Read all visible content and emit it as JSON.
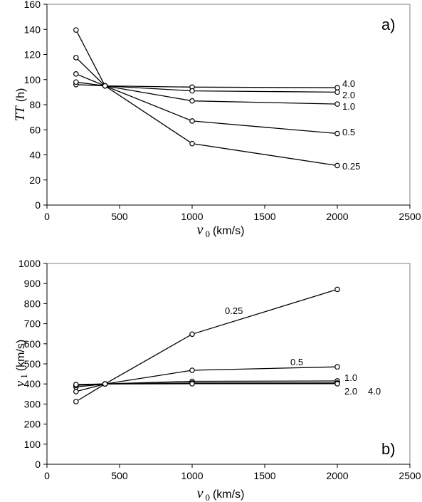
{
  "chart_data": [
    {
      "type": "line",
      "panel_label": "a)",
      "xlabel": {
        "var": "v",
        "sub": "0",
        "unit": "(km/s)"
      },
      "ylabel": {
        "var": "TT",
        "unit": "(h)"
      },
      "xlim": [
        0,
        2500
      ],
      "ylim": [
        0,
        160
      ],
      "xticks": [
        "0",
        "500",
        "1000",
        "1500",
        "2000",
        "2500"
      ],
      "yticks": [
        "0",
        "20",
        "40",
        "60",
        "80",
        "100",
        "120",
        "140",
        "160"
      ],
      "grid": false,
      "x": [
        200,
        400,
        1000,
        2000
      ],
      "series": [
        {
          "name": "4.0",
          "values": [
            96,
            95,
            94,
            93.5
          ]
        },
        {
          "name": "2.0",
          "values": [
            98,
            95,
            91,
            90
          ]
        },
        {
          "name": "1.0",
          "values": [
            104.5,
            95,
            83,
            80.5
          ]
        },
        {
          "name": "0.5",
          "values": [
            117.5,
            95,
            67,
            57
          ]
        },
        {
          "name": "0.25",
          "values": [
            139.5,
            95,
            49,
            31.5
          ]
        }
      ]
    },
    {
      "type": "line",
      "panel_label": "b)",
      "xlabel": {
        "var": "v",
        "sub": "0",
        "unit": "(km/s)"
      },
      "ylabel": {
        "var": "v",
        "sub": "1",
        "unit": "(km/s)"
      },
      "xlim": [
        0,
        2500
      ],
      "ylim": [
        0,
        1000
      ],
      "xticks": [
        "0",
        "500",
        "1000",
        "1500",
        "2000",
        "2500"
      ],
      "yticks": [
        "0",
        "100",
        "200",
        "300",
        "400",
        "500",
        "600",
        "700",
        "800",
        "900",
        "1000"
      ],
      "grid": false,
      "x": [
        200,
        400,
        1000,
        2000
      ],
      "series": [
        {
          "name": "0.25",
          "values": [
            312,
            400,
            648,
            871
          ]
        },
        {
          "name": "0.5",
          "values": [
            362,
            400,
            468,
            485
          ]
        },
        {
          "name": "1.0",
          "values": [
            385,
            400,
            413,
            415
          ]
        },
        {
          "name": "2.0",
          "values": [
            393,
            400,
            405,
            405
          ]
        },
        {
          "name": "4.0",
          "values": [
            397,
            400,
            401,
            401
          ]
        }
      ]
    }
  ]
}
